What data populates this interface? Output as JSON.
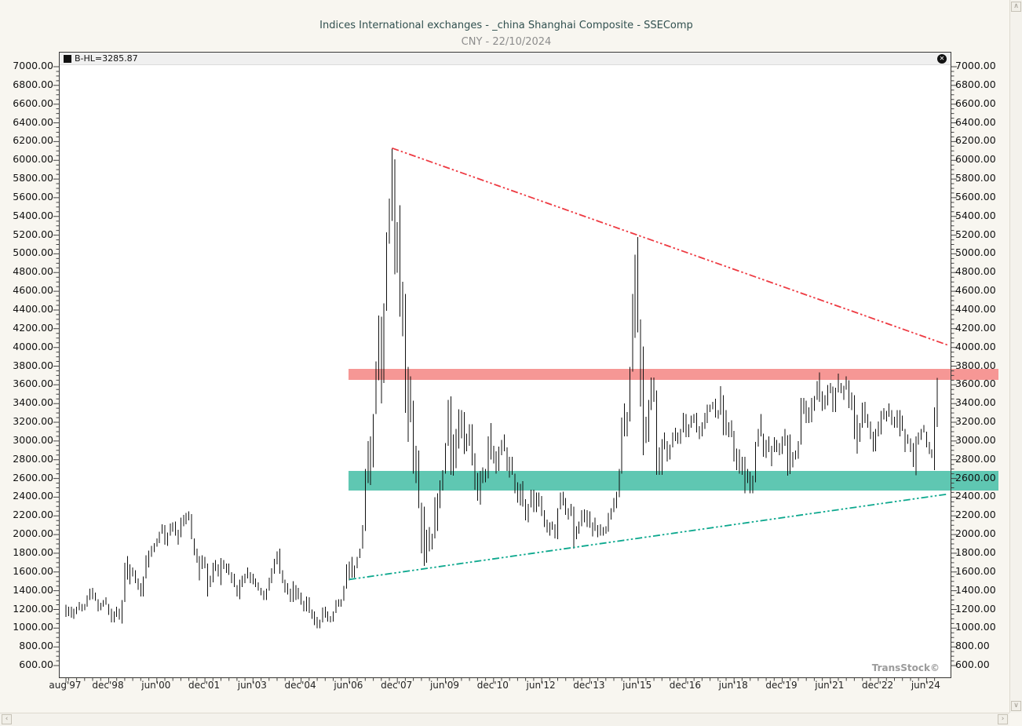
{
  "header": {
    "title": "Indices International exchanges - _china Shanghai Composite - SSEComp",
    "subtitle": "CNY - 22/10/2024"
  },
  "info_bar": {
    "label": "B-HL=3285.87",
    "close_glyph": "✕"
  },
  "watermark": "TransStock©",
  "scrollbars": {
    "up": "∧",
    "down": "∨",
    "left": "‹",
    "right": "›"
  },
  "chart_data": {
    "type": "hl-bar",
    "instrument": "SSEComp",
    "currency": "CNY",
    "as_of": "22/10/2024",
    "last_value": "3285.87",
    "interval": "monthly",
    "start_month": "1997-08",
    "end_month": "2024-10",
    "y_axis": {
      "min": 600,
      "max": 7000,
      "step": 200
    },
    "y_tick_labels": [
      "7000.00",
      "6800.00",
      "6600.00",
      "6400.00",
      "6200.00",
      "6000.00",
      "5800.00",
      "5600.00",
      "5400.00",
      "5200.00",
      "5000.00",
      "4800.00",
      "4600.00",
      "4400.00",
      "4200.00",
      "4000.00",
      "3800.00",
      "3600.00",
      "3400.00",
      "3200.00",
      "3000.00",
      "2800.00",
      "2600.00",
      "2400.00",
      "2200.00",
      "2000.00",
      "1800.00",
      "1600.00",
      "1400.00",
      "1200.00",
      "1000.00",
      "800.00",
      "600.00"
    ],
    "highlighted_right_label": "2600.00",
    "x_labels": [
      {
        "label": "aug'97",
        "index": 0
      },
      {
        "label": "dec'98",
        "index": 16
      },
      {
        "label": "jun'00",
        "index": 34
      },
      {
        "label": "dec'01",
        "index": 52
      },
      {
        "label": "jun'03",
        "index": 70
      },
      {
        "label": "dec'04",
        "index": 88
      },
      {
        "label": "jun'06",
        "index": 106
      },
      {
        "label": "dec'07",
        "index": 124
      },
      {
        "label": "jun'09",
        "index": 142
      },
      {
        "label": "dec'10",
        "index": 160
      },
      {
        "label": "jun'12",
        "index": 178
      },
      {
        "label": "dec'13",
        "index": 196
      },
      {
        "label": "jun'15",
        "index": 214
      },
      {
        "label": "dec'16",
        "index": 232
      },
      {
        "label": "jun'18",
        "index": 250
      },
      {
        "label": "dec'19",
        "index": 268
      },
      {
        "label": "jun'21",
        "index": 286
      },
      {
        "label": "dec'22",
        "index": 304
      },
      {
        "label": "jun'24",
        "index": 322
      }
    ],
    "trendlines": [
      {
        "name": "descending-resistance",
        "color": "#ee3a42",
        "style": "dash-dot-dot",
        "from": {
          "index": 122,
          "value": 6130
        },
        "to": {
          "index": 330,
          "value": 4025
        }
      },
      {
        "name": "ascending-support",
        "color": "#0da88e",
        "style": "dash-dot-dot",
        "from": {
          "index": 106,
          "value": 1520
        },
        "to": {
          "index": 330,
          "value": 2433
        }
      }
    ],
    "bands": [
      {
        "name": "resistance-zone",
        "color": "#f69795",
        "value_from": 3645,
        "value_to": 3765,
        "start_index": 106
      },
      {
        "name": "support-zone",
        "color": "#5fc7b2",
        "value_from": 2462,
        "value_to": 2672,
        "start_index": 106
      }
    ],
    "bars": [
      [
        1250,
        1120
      ],
      [
        1230,
        1130
      ],
      [
        1230,
        1110
      ],
      [
        1210,
        1100
      ],
      [
        1230,
        1150
      ],
      [
        1280,
        1190
      ],
      [
        1260,
        1180
      ],
      [
        1260,
        1190
      ],
      [
        1350,
        1230
      ],
      [
        1420,
        1300
      ],
      [
        1430,
        1310
      ],
      [
        1380,
        1290
      ],
      [
        1310,
        1180
      ],
      [
        1270,
        1190
      ],
      [
        1300,
        1230
      ],
      [
        1330,
        1250
      ],
      [
        1260,
        1140
      ],
      [
        1210,
        1060
      ],
      [
        1180,
        1060
      ],
      [
        1230,
        1120
      ],
      [
        1210,
        1090
      ],
      [
        1300,
        1050
      ],
      [
        1700,
        1280
      ],
      [
        1770,
        1520
      ],
      [
        1680,
        1470
      ],
      [
        1650,
        1550
      ],
      [
        1620,
        1480
      ],
      [
        1530,
        1410
      ],
      [
        1480,
        1340
      ],
      [
        1550,
        1340
      ],
      [
        1780,
        1530
      ],
      [
        1830,
        1650
      ],
      [
        1880,
        1760
      ],
      [
        1910,
        1810
      ],
      [
        1960,
        1870
      ],
      [
        2030,
        1910
      ],
      [
        2110,
        2010
      ],
      [
        2100,
        1890
      ],
      [
        2020,
        1880
      ],
      [
        2120,
        1990
      ],
      [
        2130,
        2030
      ],
      [
        2140,
        1990
      ],
      [
        2050,
        1890
      ],
      [
        2180,
        1970
      ],
      [
        2210,
        2090
      ],
      [
        2230,
        2110
      ],
      [
        2250,
        2150
      ],
      [
        2220,
        1950
      ],
      [
        1960,
        1780
      ],
      [
        1850,
        1700
      ],
      [
        1770,
        1510
      ],
      [
        1780,
        1630
      ],
      [
        1760,
        1640
      ],
      [
        1690,
        1340
      ],
      [
        1560,
        1440
      ],
      [
        1700,
        1490
      ],
      [
        1730,
        1610
      ],
      [
        1680,
        1550
      ],
      [
        1750,
        1460
      ],
      [
        1730,
        1630
      ],
      [
        1690,
        1590
      ],
      [
        1690,
        1570
      ],
      [
        1600,
        1480
      ],
      [
        1580,
        1440
      ],
      [
        1460,
        1340
      ],
      [
        1520,
        1310
      ],
      [
        1560,
        1440
      ],
      [
        1580,
        1480
      ],
      [
        1650,
        1530
      ],
      [
        1600,
        1480
      ],
      [
        1580,
        1470
      ],
      [
        1530,
        1440
      ],
      [
        1490,
        1400
      ],
      [
        1430,
        1350
      ],
      [
        1400,
        1300
      ],
      [
        1420,
        1300
      ],
      [
        1540,
        1400
      ],
      [
        1640,
        1480
      ],
      [
        1740,
        1580
      ],
      [
        1820,
        1680
      ],
      [
        1850,
        1580
      ],
      [
        1620,
        1480
      ],
      [
        1520,
        1380
      ],
      [
        1480,
        1360
      ],
      [
        1420,
        1280
      ],
      [
        1500,
        1280
      ],
      [
        1460,
        1300
      ],
      [
        1430,
        1310
      ],
      [
        1380,
        1250
      ],
      [
        1290,
        1180
      ],
      [
        1340,
        1180
      ],
      [
        1330,
        1160
      ],
      [
        1200,
        1100
      ],
      [
        1180,
        1030
      ],
      [
        1120,
        998
      ],
      [
        1090,
        1000
      ],
      [
        1220,
        1060
      ],
      [
        1230,
        1110
      ],
      [
        1180,
        1070
      ],
      [
        1130,
        1060
      ],
      [
        1180,
        1070
      ],
      [
        1300,
        1160
      ],
      [
        1310,
        1230
      ],
      [
        1310,
        1230
      ],
      [
        1450,
        1290
      ],
      [
        1680,
        1420
      ],
      [
        1710,
        1510
      ],
      [
        1760,
        1540
      ],
      [
        1670,
        1540
      ],
      [
        1760,
        1640
      ],
      [
        1850,
        1750
      ],
      [
        2100,
        1850
      ],
      [
        2700,
        2040
      ],
      [
        3000,
        2550
      ],
      [
        3050,
        2530
      ],
      [
        3290,
        2720
      ],
      [
        3850,
        3290
      ],
      [
        4340,
        3650
      ],
      [
        4330,
        3400
      ],
      [
        4470,
        3620
      ],
      [
        5230,
        4390
      ],
      [
        5590,
        5110
      ],
      [
        6124,
        5350
      ],
      [
        6010,
        4780
      ],
      [
        5340,
        4800
      ],
      [
        5520,
        4330
      ],
      [
        4700,
        4120
      ],
      [
        4570,
        3300
      ],
      [
        3790,
        2990
      ],
      [
        3690,
        3200
      ],
      [
        3430,
        2650
      ],
      [
        2950,
        2550
      ],
      [
        2900,
        2280
      ],
      [
        2340,
        1800
      ],
      [
        2300,
        1664
      ],
      [
        2050,
        1700
      ],
      [
        2080,
        1820
      ],
      [
        2010,
        1840
      ],
      [
        2400,
        1960
      ],
      [
        2440,
        2040
      ],
      [
        2580,
        2280
      ],
      [
        2690,
        2470
      ],
      [
        2980,
        2650
      ],
      [
        3440,
        2950
      ],
      [
        3478,
        2640
      ],
      [
        3070,
        2630
      ],
      [
        3130,
        2710
      ],
      [
        3340,
        2920
      ],
      [
        3330,
        3030
      ],
      [
        3310,
        2860
      ],
      [
        3080,
        2890
      ],
      [
        3180,
        2950
      ],
      [
        3180,
        2740
      ],
      [
        2870,
        2480
      ],
      [
        2660,
        2360
      ],
      [
        2680,
        2320
      ],
      [
        2720,
        2550
      ],
      [
        2700,
        2560
      ],
      [
        3050,
        2600
      ],
      [
        3190,
        2800
      ],
      [
        2950,
        2760
      ],
      [
        2890,
        2650
      ],
      [
        2940,
        2680
      ],
      [
        3010,
        2850
      ],
      [
        3070,
        2890
      ],
      [
        2930,
        2680
      ],
      [
        2830,
        2610
      ],
      [
        2830,
        2640
      ],
      [
        2650,
        2440
      ],
      [
        2560,
        2340
      ],
      [
        2540,
        2310
      ],
      [
        2570,
        2300
      ],
      [
        2380,
        2150
      ],
      [
        2330,
        2130
      ],
      [
        2480,
        2290
      ],
      [
        2480,
        2240
      ],
      [
        2450,
        2240
      ],
      [
        2450,
        2300
      ],
      [
        2410,
        2200
      ],
      [
        2260,
        2080
      ],
      [
        2160,
        2020
      ],
      [
        2130,
        1990
      ],
      [
        2140,
        2050
      ],
      [
        2110,
        1960
      ],
      [
        2280,
        1950
      ],
      [
        2450,
        2270
      ],
      [
        2460,
        2310
      ],
      [
        2390,
        2210
      ],
      [
        2280,
        2160
      ],
      [
        2330,
        2200
      ],
      [
        2300,
        1849
      ],
      [
        2090,
        1950
      ],
      [
        2140,
        2010
      ],
      [
        2260,
        2090
      ],
      [
        2270,
        2130
      ],
      [
        2260,
        2080
      ],
      [
        2250,
        2070
      ],
      [
        2130,
        1980
      ],
      [
        2180,
        2040
      ],
      [
        2100,
        1970
      ],
      [
        2110,
        1990
      ],
      [
        2080,
        1990
      ],
      [
        2090,
        2010
      ],
      [
        2230,
        2030
      ],
      [
        2280,
        2160
      ],
      [
        2390,
        2240
      ],
      [
        2460,
        2280
      ],
      [
        2700,
        2400
      ],
      [
        3250,
        2650
      ],
      [
        3400,
        3050
      ],
      [
        3310,
        3050
      ],
      [
        3790,
        3210
      ],
      [
        4570,
        3740
      ],
      [
        4990,
        4100
      ],
      [
        5178,
        4160
      ],
      [
        4300,
        3370
      ],
      [
        4010,
        2850
      ],
      [
        3260,
        2980
      ],
      [
        3440,
        2990
      ],
      [
        3680,
        3330
      ],
      [
        3680,
        3420
      ],
      [
        3540,
        2638
      ],
      [
        2930,
        2640
      ],
      [
        3020,
        2640
      ],
      [
        3090,
        2910
      ],
      [
        3000,
        2780
      ],
      [
        2960,
        2800
      ],
      [
        3090,
        2930
      ],
      [
        3140,
        3000
      ],
      [
        3090,
        2970
      ],
      [
        3130,
        2970
      ],
      [
        3300,
        3090
      ],
      [
        3290,
        3040
      ],
      [
        3180,
        3040
      ],
      [
        3270,
        3140
      ],
      [
        3290,
        3190
      ],
      [
        3300,
        3090
      ],
      [
        3160,
        3020
      ],
      [
        3200,
        3050
      ],
      [
        3300,
        3130
      ],
      [
        3390,
        3190
      ],
      [
        3390,
        3310
      ],
      [
        3420,
        3340
      ],
      [
        3450,
        3250
      ],
      [
        3330,
        3240
      ],
      [
        3587,
        3280
      ],
      [
        3490,
        3060
      ],
      [
        3330,
        3060
      ],
      [
        3200,
        3040
      ],
      [
        3220,
        3040
      ],
      [
        3110,
        2780
      ],
      [
        2920,
        2690
      ],
      [
        2910,
        2650
      ],
      [
        2830,
        2640
      ],
      [
        2830,
        2440
      ],
      [
        2700,
        2550
      ],
      [
        2670,
        2440
      ],
      [
        2630,
        2440
      ],
      [
        2990,
        2560
      ],
      [
        3130,
        2940
      ],
      [
        3288,
        3050
      ],
      [
        3080,
        2830
      ],
      [
        3010,
        2820
      ],
      [
        3050,
        2880
      ],
      [
        2950,
        2730
      ],
      [
        3040,
        2880
      ],
      [
        3010,
        2880
      ],
      [
        2980,
        2850
      ],
      [
        3050,
        2860
      ],
      [
        3130,
        2950
      ],
      [
        3060,
        2630
      ],
      [
        3070,
        2646
      ],
      [
        2880,
        2720
      ],
      [
        2900,
        2800
      ],
      [
        3000,
        2810
      ],
      [
        3460,
        2960
      ],
      [
        3460,
        3290
      ],
      [
        3430,
        3190
      ],
      [
        3360,
        3190
      ],
      [
        3460,
        3200
      ],
      [
        3480,
        3320
      ],
      [
        3640,
        3440
      ],
      [
        3731,
        3420
      ],
      [
        3530,
        3320
      ],
      [
        3490,
        3340
      ],
      [
        3600,
        3380
      ],
      [
        3620,
        3510
      ],
      [
        3580,
        3310
      ],
      [
        3570,
        3310
      ],
      [
        3720,
        3520
      ],
      [
        3620,
        3510
      ],
      [
        3590,
        3440
      ],
      [
        3690,
        3550
      ],
      [
        3650,
        3350
      ],
      [
        3520,
        3330
      ],
      [
        3490,
        3020
      ],
      [
        3280,
        2863
      ],
      [
        3190,
        2990
      ],
      [
        3410,
        3140
      ],
      [
        3420,
        3190
      ],
      [
        3290,
        3140
      ],
      [
        3210,
        3020
      ],
      [
        3100,
        2885
      ],
      [
        3130,
        2890
      ],
      [
        3210,
        3050
      ],
      [
        3320,
        3070
      ],
      [
        3350,
        3230
      ],
      [
        3320,
        3210
      ],
      [
        3400,
        3260
      ],
      [
        3330,
        3170
      ],
      [
        3260,
        3140
      ],
      [
        3330,
        3140
      ],
      [
        3330,
        3050
      ],
      [
        3270,
        3110
      ],
      [
        3130,
        2882
      ],
      [
        3070,
        2970
      ],
      [
        3030,
        2880
      ],
      [
        2980,
        2724
      ],
      [
        3050,
        2635
      ],
      [
        3090,
        2960
      ],
      [
        3130,
        3010
      ],
      [
        3170,
        3090
      ],
      [
        3100,
        2930
      ],
      [
        2990,
        2860
      ],
      [
        2910,
        2820
      ],
      [
        3360,
        2689
      ],
      [
        3674,
        3150
      ]
    ]
  }
}
